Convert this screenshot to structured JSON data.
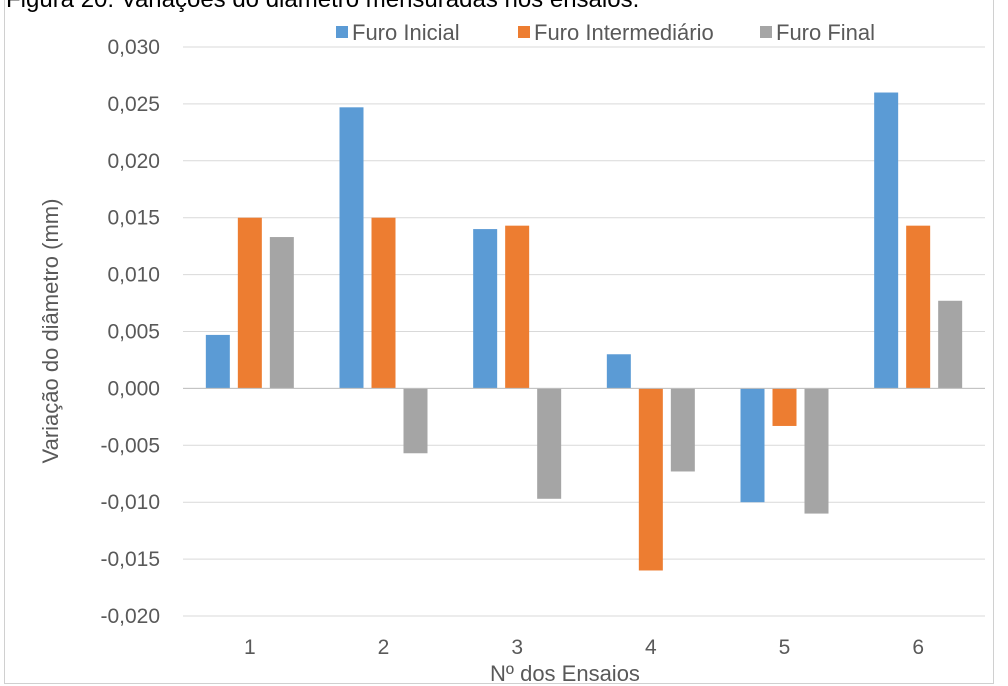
{
  "caption": "Figura 20: Variações do diâmetro mensuradas nos ensaios.",
  "chart_data": {
    "type": "bar",
    "title": "",
    "xlabel": "Nº dos Ensaios",
    "ylabel": "Variação do diâmetro (mm)",
    "categories": [
      "1",
      "2",
      "3",
      "4",
      "5",
      "6"
    ],
    "ylim": [
      -0.02,
      0.03
    ],
    "ytick_step": 0.005,
    "yticks": [
      "-0,020",
      "-0,015",
      "-0,010",
      "-0,005",
      "0,000",
      "0,005",
      "0,010",
      "0,015",
      "0,020",
      "0,025",
      "0,030"
    ],
    "grid": true,
    "legend_position": "top",
    "series": [
      {
        "name": "Furo Inicial",
        "color": "#5B9BD5",
        "values": [
          0.0047,
          0.0247,
          0.014,
          0.003,
          -0.01,
          0.026
        ]
      },
      {
        "name": "Furo Intermediário",
        "color": "#ED7D31",
        "values": [
          0.015,
          0.015,
          0.0143,
          -0.016,
          -0.0033,
          0.0143
        ]
      },
      {
        "name": "Furo Final",
        "color": "#A5A5A5",
        "values": [
          0.0133,
          -0.0057,
          -0.0097,
          -0.0073,
          -0.011,
          0.0077
        ]
      }
    ]
  }
}
